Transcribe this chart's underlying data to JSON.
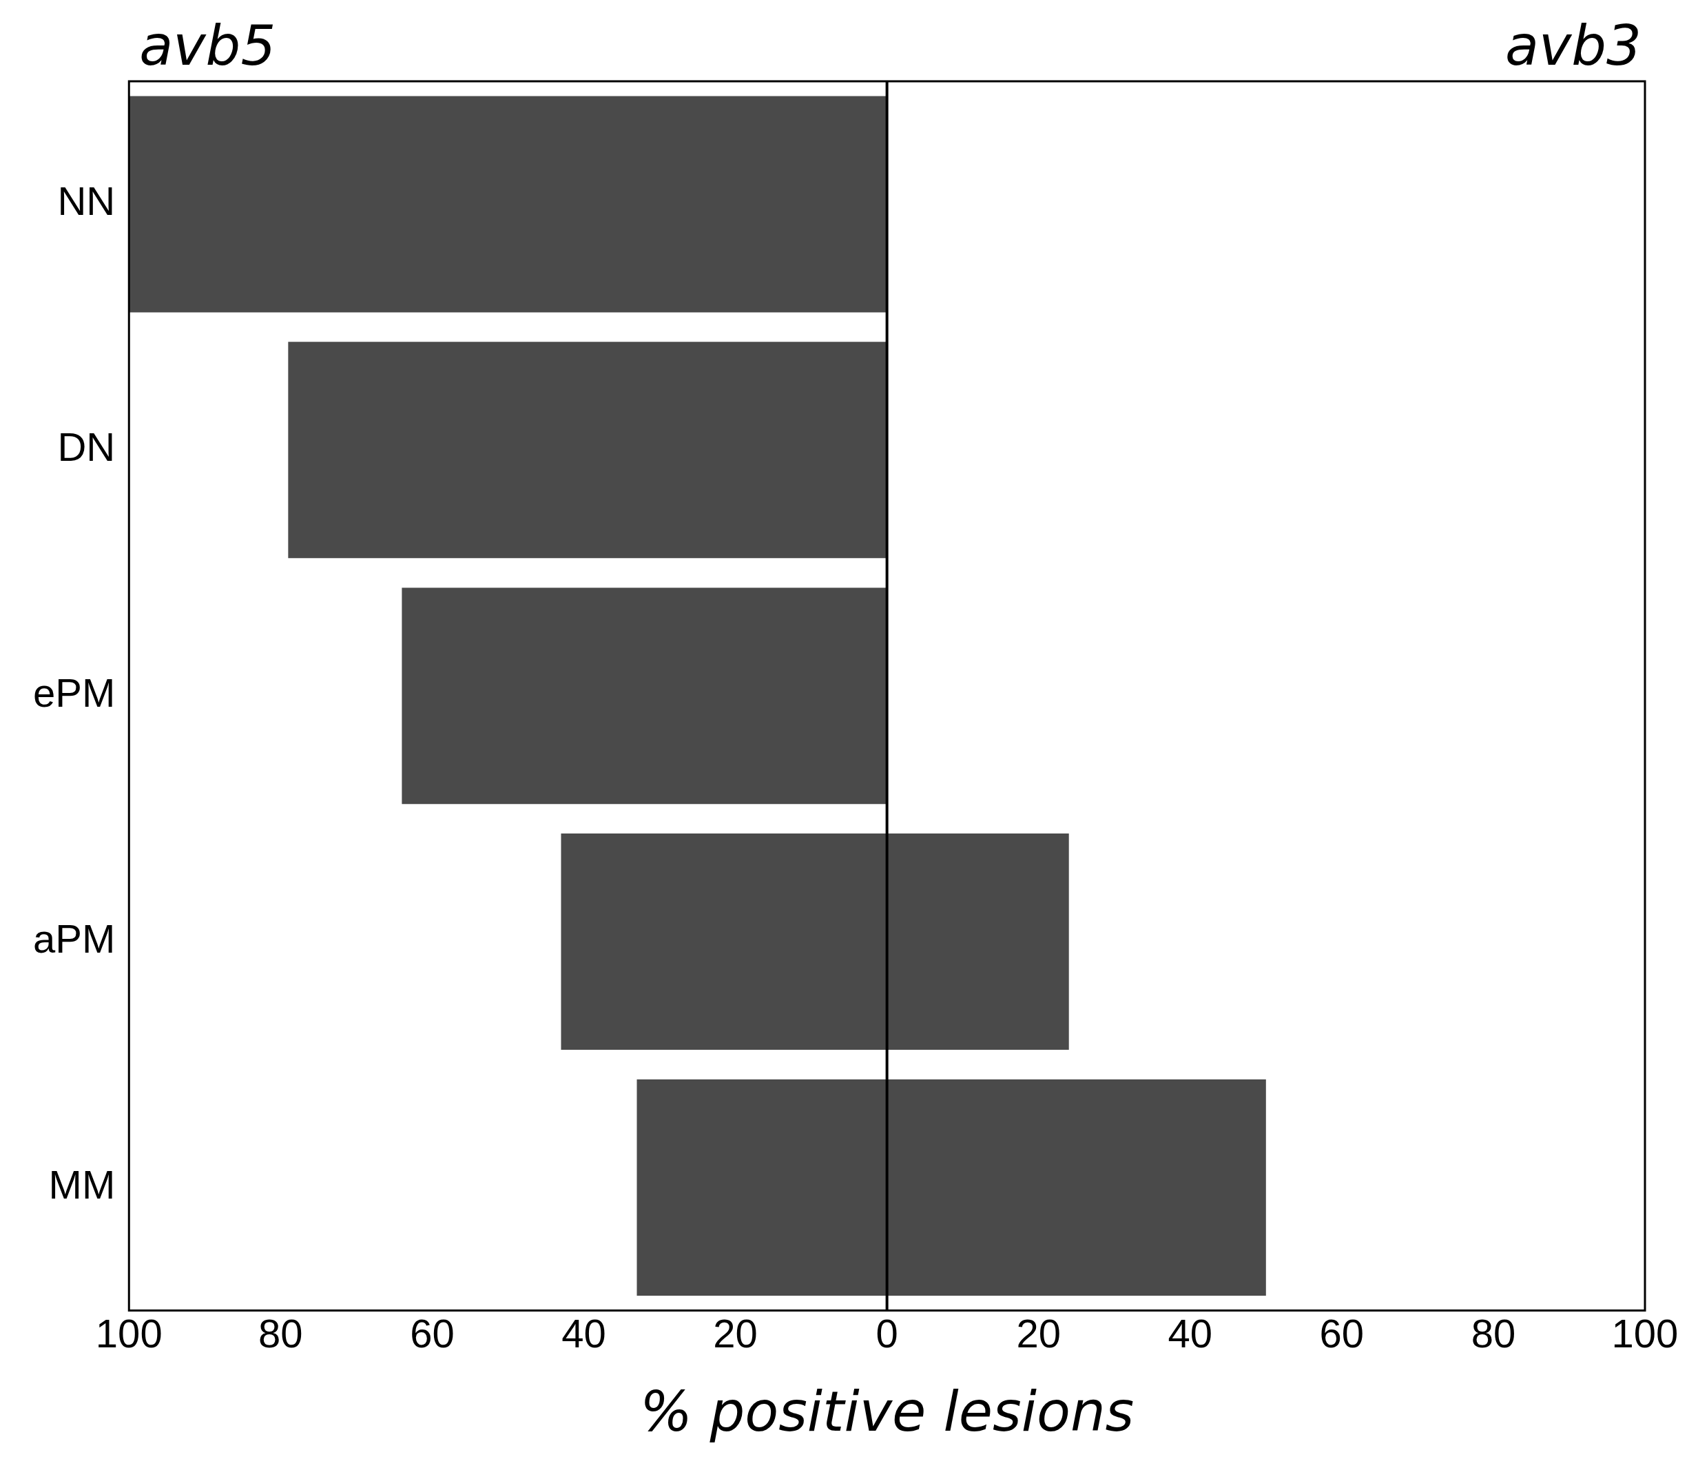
{
  "chart_data": {
    "type": "bar",
    "orientation": "horizontal",
    "stacked": true,
    "categories": [
      "NN",
      "DN",
      "ePM",
      "aPM",
      "MM"
    ],
    "series": [
      {
        "color": "#4a4a4a",
        "values": [
          -100,
          -79,
          -64,
          -43,
          -33
        ]
      },
      {
        "color": "#4a4a4a",
        "values": [
          null,
          null,
          null,
          24,
          50
        ]
      }
    ],
    "annotations": [
      "avb5",
      "avb3"
    ],
    "xlim": [
      -100,
      100
    ],
    "xticks": [
      {
        "value": -100,
        "label": "100"
      },
      {
        "value": -80,
        "label": "80"
      },
      {
        "value": -60,
        "label": "60"
      },
      {
        "value": -40,
        "label": "40"
      },
      {
        "value": -20,
        "label": "20"
      },
      0,
      20,
      40,
      60,
      80,
      100
    ],
    "xlabel": "% positive lesions",
    "ref_lines": [
      {
        "axis": "x",
        "value": 0
      }
    ],
    "grid": false,
    "legend": false
  }
}
